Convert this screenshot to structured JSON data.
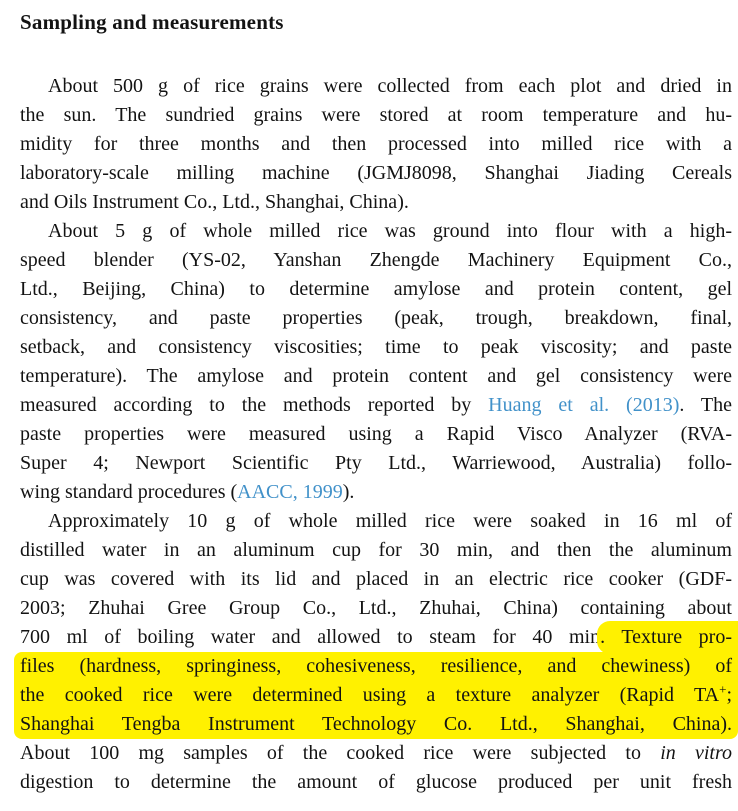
{
  "document": {
    "heading": "Sampling and measurements",
    "colors": {
      "text": "#131313",
      "link": "#4191c9",
      "highlight": "#fff100",
      "background": "#ffffff"
    },
    "paragraphs": [
      {
        "lines": [
          {
            "indent": true,
            "segments": [
              {
                "text": "About 500 g of rice grains were collected from each plot and dried in"
              }
            ]
          },
          {
            "segments": [
              {
                "text": "the sun. The sundried grains were stored at room temperature and hu-"
              }
            ]
          },
          {
            "segments": [
              {
                "text": "midity for three months and then processed into milled rice with a"
              }
            ]
          },
          {
            "segments": [
              {
                "text": "laboratory-scale milling machine (JGMJ8098, Shanghai Jiading Cereals"
              }
            ]
          },
          {
            "align": "left",
            "segments": [
              {
                "text": "and Oils Instrument Co., Ltd., Shanghai, China)."
              }
            ]
          }
        ]
      },
      {
        "lines": [
          {
            "indent": true,
            "segments": [
              {
                "text": "About 5 g of whole milled rice was ground into flour with a high-"
              }
            ]
          },
          {
            "segments": [
              {
                "text": "speed blender (YS-02, Yanshan Zhengde Machinery Equipment Co.,"
              }
            ]
          },
          {
            "segments": [
              {
                "text": "Ltd., Beijing, China) to determine amylose and protein content, gel"
              }
            ]
          },
          {
            "segments": [
              {
                "text": "consistency, and paste properties (peak, trough, breakdown, final,"
              }
            ]
          },
          {
            "segments": [
              {
                "text": "setback, and consistency viscosities; time to peak viscosity; and paste"
              }
            ]
          },
          {
            "segments": [
              {
                "text": "temperature). The amylose and protein content and gel consistency were"
              }
            ]
          },
          {
            "segments": [
              {
                "text": "measured according to the methods reported by "
              },
              {
                "text": "Huang et al. (2013)",
                "link": true,
                "name": "citation-link-huang-2013"
              },
              {
                "text": ". The"
              }
            ]
          },
          {
            "segments": [
              {
                "text": "paste properties were measured using a Rapid Visco Analyzer (RVA-"
              }
            ]
          },
          {
            "segments": [
              {
                "text": "Super 4; Newport Scientific Pty Ltd., Warriewood, Australia) follo-"
              }
            ]
          },
          {
            "align": "left",
            "segments": [
              {
                "text": "wing standard procedures ("
              },
              {
                "text": "AACC, 1999",
                "link": true,
                "name": "citation-link-aacc-1999"
              },
              {
                "text": ")."
              }
            ]
          }
        ]
      },
      {
        "lines": [
          {
            "indent": true,
            "segments": [
              {
                "text": "Approximately 10 g of whole milled rice were soaked in 16 ml of"
              }
            ]
          },
          {
            "segments": [
              {
                "text": "distilled water in an aluminum cup for 30 min, and then the aluminum"
              }
            ]
          },
          {
            "segments": [
              {
                "text": "cup was covered with its lid and placed in an electric rice cooker (GDF-"
              }
            ]
          },
          {
            "segments": [
              {
                "text": "2003; Zhuhai Gree Group Co., Ltd., Zhuhai, China) containing about"
              }
            ]
          },
          {
            "segments": [
              {
                "text": "700 ml of boiling water and allowed to steam for 40 min"
              },
              {
                "text": ". Texture pro-",
                "highlight": true,
                "hlStart": true
              }
            ]
          },
          {
            "fullHighlight": true,
            "hlFirst": true,
            "segments": [
              {
                "text": "files (hardness, springiness, cohesiveness, resilience, and chewiness) of",
                "highlight": true
              }
            ]
          },
          {
            "fullHighlight": true,
            "segments": [
              {
                "text": "the cooked rice were determined using a texture analyzer (Rapid TA",
                "highlight": true
              },
              {
                "text": "+",
                "sup": true,
                "highlight": true
              },
              {
                "text": ";",
                "highlight": true
              }
            ]
          },
          {
            "fullHighlight": true,
            "hlLast": true,
            "segments": [
              {
                "text": "Shanghai Tengba Instrument Technology Co. Ltd., Shanghai, China).",
                "highlight": true
              }
            ]
          },
          {
            "segments": [
              {
                "text": "About 100 mg samples of the cooked rice were subjected to "
              },
              {
                "text": "in vitro",
                "italic": true
              }
            ]
          },
          {
            "segments": [
              {
                "text": "digestion to determine the amount of glucose produced per unit fresh"
              }
            ]
          }
        ]
      }
    ]
  }
}
